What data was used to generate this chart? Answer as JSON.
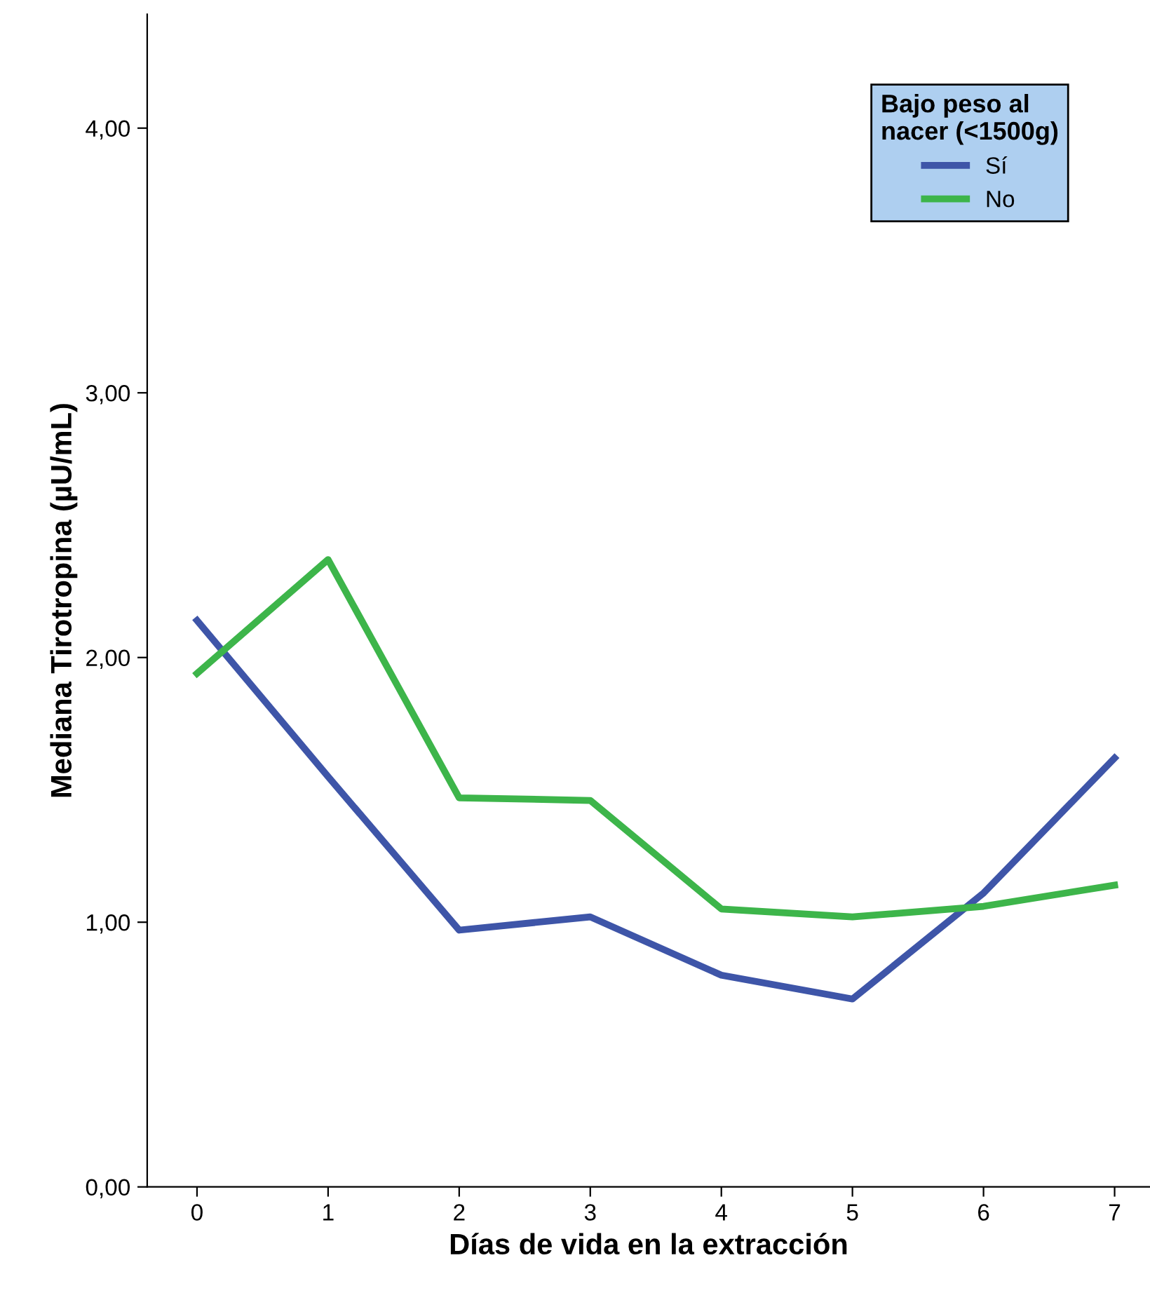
{
  "chart_data": {
    "type": "line",
    "xlabel": "Días de vida en la extracción",
    "ylabel": "Mediana Tirotropina (µU/mL)",
    "legend_title": "Bajo peso al\nnacer (<1500g)",
    "x": [
      0,
      1,
      2,
      3,
      4,
      5,
      6,
      7
    ],
    "series": [
      {
        "name": "Sí",
        "color": "#3e55a8",
        "values": [
          2.14,
          1.55,
          0.97,
          1.02,
          0.8,
          0.71,
          1.11,
          1.62
        ]
      },
      {
        "name": "No",
        "color": "#3db54a",
        "values": [
          1.94,
          2.37,
          1.47,
          1.46,
          1.05,
          1.02,
          1.06,
          1.14
        ]
      }
    ],
    "xlim": [
      -0.38,
      7.27
    ],
    "ylim": [
      0,
      4.43
    ],
    "xticks": [
      0,
      1,
      2,
      3,
      4,
      5,
      6,
      7
    ],
    "yticks": [
      {
        "value": 0,
        "label": "0,00"
      },
      {
        "value": 1,
        "label": "1,00"
      },
      {
        "value": 2,
        "label": "2,00"
      },
      {
        "value": 3,
        "label": "3,00"
      },
      {
        "value": 4,
        "label": "4,00"
      }
    ],
    "grid": false,
    "legend": "top right",
    "marker": "none",
    "line_style": "solid"
  }
}
